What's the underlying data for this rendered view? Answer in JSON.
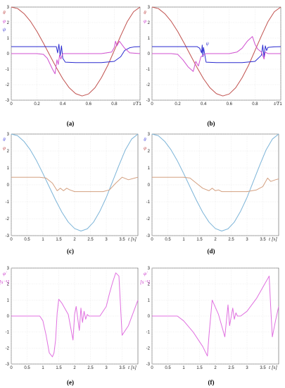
{
  "chart_data": [
    {
      "id": "a",
      "type": "line",
      "caption": "(a)",
      "xlabel": "t/T",
      "ylabels": [
        {
          "text": "θ",
          "color": "#c04848"
        },
        {
          "text": "φ",
          "color": "#cc33cc"
        },
        {
          "text": "ψ",
          "color": "#3a3ad0"
        }
      ],
      "xlim": [
        0,
        1
      ],
      "ylim": [
        -3,
        3
      ],
      "xticks": [
        0,
        0.2,
        0.4,
        0.6,
        0.8,
        1
      ],
      "xtick_labels": [
        "0",
        "0.2",
        "0.4",
        "0.6",
        "0.8",
        "1"
      ],
      "yticks": [
        -3,
        -2,
        -1,
        0,
        1,
        2,
        3
      ],
      "ytick_labels": [
        "-3",
        "-2",
        "-1",
        "0",
        "1",
        "2",
        "3"
      ],
      "grid": true,
      "series": [
        {
          "color": "#c0504d",
          "x": [
            0,
            0.05,
            0.1,
            0.15,
            0.2,
            0.25,
            0.3,
            0.35,
            0.4,
            0.45,
            0.5,
            0.55,
            0.6,
            0.65,
            0.7,
            0.75,
            0.8,
            0.85,
            0.9,
            0.95,
            1
          ],
          "y": [
            3,
            2.9,
            2.57,
            2.07,
            1.42,
            0.67,
            -0.12,
            -0.9,
            -1.62,
            -2.2,
            -2.58,
            -2.73,
            -2.6,
            -2.2,
            -1.55,
            -0.75,
            0.2,
            1.15,
            2.05,
            2.7,
            3
          ]
        },
        {
          "color": "#2a2ad0",
          "x": [
            0,
            0.35,
            0.36,
            0.37,
            0.38,
            0.39,
            0.4,
            0.42,
            0.5,
            0.6,
            0.7,
            0.8,
            0.85,
            0.88,
            0.92,
            0.96,
            1
          ],
          "y": [
            0.45,
            0.45,
            0.05,
            0.6,
            -0.15,
            0.5,
            -0.3,
            -0.55,
            -0.58,
            -0.58,
            -0.58,
            -0.5,
            -0.2,
            0.2,
            0.38,
            0.44,
            0.45
          ]
        },
        {
          "color": "#d050d0",
          "x": [
            0,
            0.2,
            0.25,
            0.28,
            0.32,
            0.34,
            0.355,
            0.365,
            0.375,
            0.385,
            0.4,
            0.43,
            0.5,
            0.6,
            0.7,
            0.78,
            0.8,
            0.81,
            0.82,
            0.84,
            0.88,
            0.92,
            1
          ],
          "y": [
            0,
            0,
            -0.05,
            -0.3,
            -1.0,
            -1.3,
            -0.4,
            -0.7,
            -0.1,
            -0.35,
            0,
            0,
            0,
            0,
            0,
            0.1,
            0.4,
            0.8,
            0.5,
            0.8,
            0.35,
            0.05,
            0
          ]
        }
      ]
    },
    {
      "id": "b",
      "type": "line",
      "caption": "(b)",
      "xlabel": "t/T",
      "ylabels": [
        {
          "text": "θ",
          "color": "#c04848"
        },
        {
          "text": "φ",
          "color": "#cc33cc"
        }
      ],
      "annotations": [
        {
          "text": "ψ",
          "color": "#3a3ad0",
          "x": 0.43,
          "y": 0.45
        }
      ],
      "xlim": [
        0,
        1
      ],
      "ylim": [
        -3,
        3
      ],
      "xticks": [
        0,
        0.2,
        0.4,
        0.6,
        0.8,
        1
      ],
      "xtick_labels": [
        "0",
        "0.2",
        "0.4",
        "0.6",
        "0.8",
        "1"
      ],
      "yticks": [
        -3,
        -2,
        -1,
        0,
        1,
        2,
        3
      ],
      "ytick_labels": [
        "-3",
        "-2",
        "-1",
        "0",
        "1",
        "2",
        "3"
      ],
      "grid": true,
      "series": [
        {
          "color": "#c0504d",
          "x": [
            0,
            0.05,
            0.1,
            0.15,
            0.2,
            0.25,
            0.3,
            0.35,
            0.4,
            0.45,
            0.5,
            0.55,
            0.6,
            0.65,
            0.7,
            0.75,
            0.8,
            0.85,
            0.9,
            0.95,
            1
          ],
          "y": [
            3,
            2.9,
            2.57,
            2.07,
            1.42,
            0.67,
            -0.12,
            -0.9,
            -1.62,
            -2.2,
            -2.58,
            -2.73,
            -2.6,
            -2.2,
            -1.55,
            -0.75,
            0.2,
            1.15,
            2.05,
            2.7,
            3
          ]
        },
        {
          "color": "#2a2ad0",
          "x": [
            0,
            0.35,
            0.37,
            0.385,
            0.39,
            0.395,
            0.4,
            0.42,
            0.5,
            0.6,
            0.7,
            0.8,
            0.85,
            0.86,
            0.87,
            0.88,
            0.89,
            0.9,
            0.95,
            1
          ],
          "y": [
            0.45,
            0.45,
            0.35,
            0.05,
            0.55,
            -0.2,
            0.4,
            -0.55,
            -0.58,
            -0.58,
            -0.58,
            -0.5,
            -0.1,
            0.55,
            -0.2,
            0.5,
            0.2,
            0.4,
            0.44,
            0.45
          ]
        },
        {
          "color": "#d050d0",
          "x": [
            0,
            0.15,
            0.2,
            0.24,
            0.28,
            0.32,
            0.34,
            0.36,
            0.38,
            0.42,
            0.5,
            0.6,
            0.66,
            0.7,
            0.74,
            0.78,
            0.8,
            0.82,
            0.85,
            0.87,
            0.88,
            0.9,
            1
          ],
          "y": [
            0,
            0,
            -0.05,
            -0.4,
            -0.85,
            -1.15,
            -0.5,
            -0.8,
            -0.2,
            0,
            0,
            0,
            0.1,
            0.35,
            0.8,
            1.1,
            0.6,
            0.3,
            0.1,
            -0.35,
            0.1,
            0,
            0
          ]
        }
      ]
    },
    {
      "id": "c",
      "type": "line",
      "caption": "(c)",
      "xlabel": "t [s]",
      "ylabels": [
        {
          "text": "θ",
          "color": "#4a4ae0"
        },
        {
          "text": "φ",
          "color": "#c04848"
        }
      ],
      "xlim": [
        0,
        4
      ],
      "ylim": [
        -3,
        3
      ],
      "xticks": [
        0,
        0.5,
        1,
        1.5,
        2,
        2.5,
        3,
        3.5
      ],
      "xtick_labels": [
        "0",
        "0.5",
        "1",
        "1.5",
        "2",
        "2.5",
        "3",
        "3.5"
      ],
      "yticks": [
        -3,
        -2,
        -1,
        0,
        1,
        2,
        3
      ],
      "ytick_labels": [
        "-3",
        "-2",
        "-1",
        "0",
        "1",
        "2",
        "3"
      ],
      "grid": true,
      "series": [
        {
          "color": "#7cb4d8",
          "x": [
            0,
            0.2,
            0.4,
            0.6,
            0.8,
            1,
            1.2,
            1.4,
            1.6,
            1.8,
            2,
            2.2,
            2.4,
            2.6,
            2.8,
            3,
            3.2,
            3.4,
            3.6,
            3.8,
            4
          ],
          "y": [
            3,
            2.9,
            2.57,
            2.07,
            1.42,
            0.67,
            -0.12,
            -0.9,
            -1.62,
            -2.2,
            -2.58,
            -2.73,
            -2.6,
            -2.2,
            -1.55,
            -0.75,
            0.2,
            1.15,
            2.05,
            2.7,
            3
          ]
        },
        {
          "color": "#d4a080",
          "x": [
            0,
            0.5,
            0.9,
            1.1,
            1.3,
            1.45,
            1.55,
            1.65,
            1.75,
            1.85,
            2.0,
            2.5,
            2.9,
            3.1,
            3.3,
            3.5,
            3.7,
            3.9,
            4.0
          ],
          "y": [
            0.45,
            0.45,
            0.45,
            0.4,
            0.1,
            -0.35,
            -0.2,
            -0.35,
            -0.2,
            -0.3,
            -0.4,
            -0.4,
            -0.4,
            -0.3,
            0.1,
            0.45,
            0.3,
            0.4,
            0.45
          ]
        }
      ]
    },
    {
      "id": "d",
      "type": "line",
      "caption": "(d)",
      "xlabel": "t [s]",
      "ylabels": [
        {
          "text": "θ",
          "color": "#4a4ae0"
        },
        {
          "text": "φ",
          "color": "#c04848"
        }
      ],
      "xlim": [
        0,
        4
      ],
      "ylim": [
        -3,
        3
      ],
      "xticks": [
        0,
        0.5,
        1,
        1.5,
        2,
        2.5,
        3,
        3.5
      ],
      "xtick_labels": [
        "0",
        "0.5",
        "1",
        "1.5",
        "2",
        "2.5",
        "3",
        "3.5"
      ],
      "yticks": [
        -3,
        -2,
        -1,
        0,
        1,
        2,
        3
      ],
      "ytick_labels": [
        "-3",
        "-2",
        "-1",
        "0",
        "1",
        "2",
        "3"
      ],
      "grid": true,
      "series": [
        {
          "color": "#7cb4d8",
          "x": [
            0,
            0.2,
            0.4,
            0.6,
            0.8,
            1,
            1.2,
            1.4,
            1.6,
            1.8,
            2,
            2.2,
            2.4,
            2.6,
            2.8,
            3,
            3.2,
            3.4,
            3.6,
            3.8,
            4
          ],
          "y": [
            3,
            2.9,
            2.57,
            2.07,
            1.42,
            0.67,
            -0.12,
            -0.9,
            -1.62,
            -2.2,
            -2.58,
            -2.73,
            -2.6,
            -2.2,
            -1.55,
            -0.75,
            0.2,
            1.15,
            2.05,
            2.7,
            3
          ]
        },
        {
          "color": "#d4a080",
          "x": [
            0,
            0.5,
            1.0,
            1.2,
            1.4,
            1.6,
            1.8,
            1.9,
            2.0,
            2.1,
            2.2,
            2.5,
            3.0,
            3.3,
            3.5,
            3.65,
            3.75,
            3.9,
            4.0
          ],
          "y": [
            0.45,
            0.45,
            0.45,
            0.4,
            0.1,
            -0.2,
            -0.35,
            -0.2,
            -0.35,
            -0.3,
            -0.4,
            -0.4,
            -0.4,
            -0.3,
            -0.1,
            0.4,
            0.2,
            0.3,
            0.35
          ]
        }
      ]
    },
    {
      "id": "e",
      "type": "line",
      "caption": "(e)",
      "xlabel": "t [s]",
      "ylabels": [
        {
          "text": "φ̇",
          "color": "#cc33cc"
        },
        {
          "text": "[s⁻¹]",
          "color": "#cc33cc"
        }
      ],
      "xlim": [
        0,
        4
      ],
      "ylim": [
        -3,
        3
      ],
      "xticks": [
        0,
        0.5,
        1,
        1.5,
        2,
        2.5,
        3,
        3.5
      ],
      "xtick_labels": [
        "0",
        "0.5",
        "1",
        "1.5",
        "2",
        "2.5",
        "3",
        "3.5"
      ],
      "yticks": [
        -3,
        -2,
        -1,
        0,
        1,
        2,
        3
      ],
      "ytick_labels": [
        "-3",
        "-2",
        "-1",
        "0",
        "1",
        "2",
        "3"
      ],
      "grid": true,
      "series": [
        {
          "color": "#e070e0",
          "x": [
            0,
            0.9,
            1.0,
            1.1,
            1.2,
            1.3,
            1.35,
            1.4,
            1.45,
            1.5,
            1.6,
            1.8,
            1.95,
            2.0,
            2.05,
            2.15,
            2.2,
            2.25,
            2.3,
            2.35,
            2.4,
            2.45,
            2.5,
            2.6,
            2.8,
            3.0,
            3.1,
            3.2,
            3.3,
            3.35,
            3.4,
            3.5,
            3.7,
            4.0
          ],
          "y": [
            0,
            0,
            -0.3,
            -1.2,
            -2.3,
            -2.55,
            -2.3,
            -1.5,
            0.2,
            1.05,
            0.8,
            0.1,
            -1.5,
            0.1,
            0.6,
            -0.9,
            0.5,
            -0.4,
            0.3,
            -0.2,
            0.1,
            0,
            0,
            0,
            0,
            0.6,
            1.4,
            2.1,
            2.7,
            2.6,
            2.5,
            -1.2,
            -0.6,
            1.0
          ]
        }
      ]
    },
    {
      "id": "f",
      "type": "line",
      "caption": "(f)",
      "xlabel": "t [s]",
      "ylabels": [
        {
          "text": "φ̇",
          "color": "#cc33cc"
        },
        {
          "text": "[s⁻¹]",
          "color": "#cc33cc"
        }
      ],
      "xlim": [
        0,
        4
      ],
      "ylim": [
        -3,
        3
      ],
      "xticks": [
        0,
        0.5,
        1,
        1.5,
        2,
        2.5,
        3,
        3.5
      ],
      "xtick_labels": [
        "0",
        "0.5",
        "1",
        "1.5",
        "2",
        "2.5",
        "3",
        "3.5"
      ],
      "yticks": [
        -3,
        -2,
        -1,
        0,
        1,
        2,
        3
      ],
      "ytick_labels": [
        "-3",
        "-2",
        "-1",
        "0",
        "1",
        "2",
        "3"
      ],
      "grid": true,
      "series": [
        {
          "color": "#e070e0",
          "x": [
            0,
            0.8,
            1.0,
            1.3,
            1.6,
            1.75,
            1.8,
            1.9,
            2.1,
            2.3,
            2.4,
            2.45,
            2.55,
            2.6,
            2.65,
            2.7,
            2.75,
            2.8,
            3.0,
            3.3,
            3.5,
            3.7,
            3.75,
            3.8,
            3.9,
            4.0
          ],
          "y": [
            0,
            0,
            -0.3,
            -1.0,
            -1.9,
            -2.5,
            -1.2,
            1.0,
            0.1,
            -1.3,
            0.7,
            -0.6,
            0.5,
            -0.2,
            0.2,
            0,
            0,
            0,
            0.3,
            1.1,
            1.8,
            2.5,
            0.5,
            -1.3,
            -0.3,
            0.6
          ]
        }
      ]
    }
  ]
}
